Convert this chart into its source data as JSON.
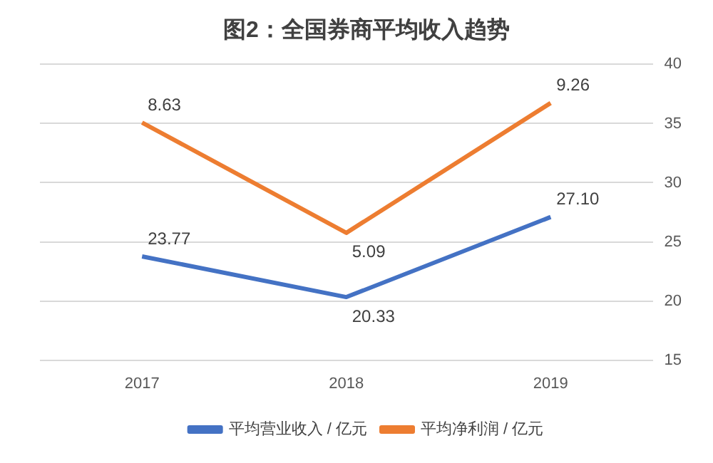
{
  "chart_data": {
    "type": "line",
    "title": "图2：全国券商平均收入趋势",
    "categories": [
      "2017",
      "2018",
      "2019"
    ],
    "series": [
      {
        "name": "平均营业收入 / 亿元",
        "color": "#4472c4",
        "values": [
          23.77,
          20.33,
          27.1
        ],
        "value_labels": [
          "23.77",
          "20.33",
          "27.10"
        ]
      },
      {
        "name": "平均净利润 / 亿元",
        "color": "#ed7d31",
        "values": [
          8.63,
          5.09,
          9.26
        ],
        "value_labels": [
          "8.63",
          "5.09",
          "9.26"
        ],
        "axis": "y2"
      }
    ],
    "ylim": [
      15,
      40
    ],
    "yticks": [
      15,
      20,
      25,
      30,
      35,
      40
    ],
    "y2lim": [
      1,
      10.5
    ],
    "grid": "y",
    "legend": "bottom",
    "marker": "none",
    "line_style": "solid"
  }
}
